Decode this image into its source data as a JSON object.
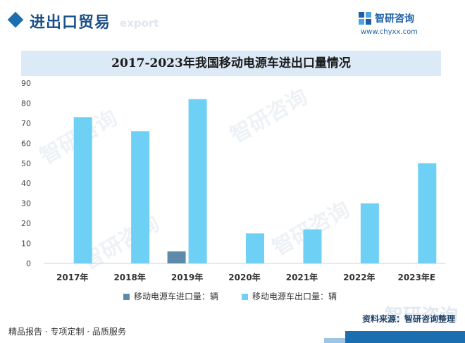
{
  "header": {
    "section_title": "进出口贸易",
    "section_subtitle": "export",
    "logo_name": "智研咨询",
    "logo_url": "www.chyxx.com"
  },
  "watermark_text": "智研咨询",
  "source": {
    "text": "资料来源：智研咨询整理"
  },
  "footer": {
    "text": "精品报告 · 专项定制 · 品质服务"
  },
  "colors": {
    "import": "#5f8bab",
    "export": "#6fd0f5",
    "title_band": "#dbeaf6",
    "brand": "#1b6fb0"
  },
  "chart_data": {
    "type": "bar",
    "title": "2017-2023年我国移动电源车进出口量情况",
    "categories": [
      "2017年",
      "2018年",
      "2019年",
      "2020年",
      "2021年",
      "2022年",
      "2023年E"
    ],
    "series": [
      {
        "name": "移动电源车进口量：辆",
        "values": [
          0,
          0,
          6,
          0,
          0,
          0,
          0
        ]
      },
      {
        "name": "移动电源车出口量：辆",
        "values": [
          73,
          66,
          82,
          15,
          17,
          30,
          50
        ]
      }
    ],
    "ylim": [
      0,
      90
    ],
    "yticks": [
      0,
      10,
      20,
      30,
      40,
      50,
      60,
      70,
      80,
      90
    ],
    "xlabel": "",
    "ylabel": "",
    "grid": false,
    "legend_position": "bottom"
  }
}
